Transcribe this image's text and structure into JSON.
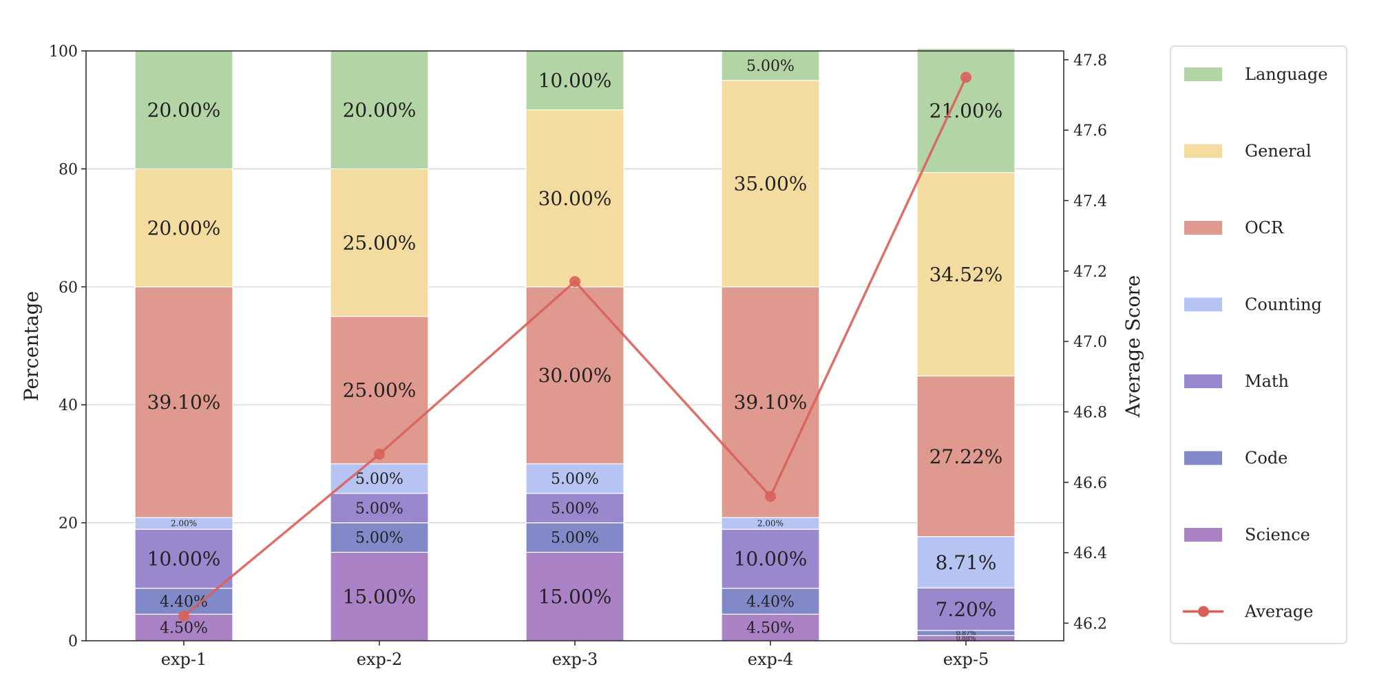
{
  "chart_data": {
    "type": "bar",
    "stacked": true,
    "categories": [
      "exp-1",
      "exp-2",
      "exp-3",
      "exp-4",
      "exp-5"
    ],
    "ylabel": "Percentage",
    "ylabel_right": "Average Score",
    "ylim": [
      0,
      100
    ],
    "ylim_right": [
      46.15,
      47.825
    ],
    "yticks": [
      0,
      20,
      40,
      60,
      80,
      100
    ],
    "yticks_right": [
      "46.2",
      "46.4",
      "46.6",
      "46.8",
      "47.0",
      "47.2",
      "47.4",
      "47.6",
      "47.8"
    ],
    "grid": "horizontal",
    "legend_placement": "outside-right",
    "series": [
      {
        "name": "Science",
        "color": "#ab82c5",
        "values": [
          4.5,
          15.0,
          15.0,
          4.5,
          0.88
        ]
      },
      {
        "name": "Code",
        "color": "#8189c9",
        "values": [
          4.4,
          5.0,
          5.0,
          4.4,
          0.87
        ]
      },
      {
        "name": "Math",
        "color": "#9a88cf",
        "values": [
          10.0,
          5.0,
          5.0,
          10.0,
          7.2
        ]
      },
      {
        "name": "Counting",
        "color": "#b6c4f3",
        "values": [
          2.0,
          5.0,
          5.0,
          2.0,
          8.71
        ]
      },
      {
        "name": "OCR",
        "color": "#df998e",
        "values": [
          39.1,
          25.0,
          30.0,
          39.1,
          27.22
        ]
      },
      {
        "name": "General",
        "color": "#f4dca0",
        "values": [
          20.0,
          25.0,
          30.0,
          35.0,
          34.52
        ]
      },
      {
        "name": "Language",
        "color": "#b3d5a6",
        "values": [
          20.0,
          20.0,
          10.0,
          5.0,
          21.0
        ]
      }
    ],
    "line": {
      "name": "Average",
      "color": "#d9605a",
      "values": [
        46.22,
        46.68,
        47.17,
        46.56,
        47.75
      ]
    },
    "legend_order": [
      "Language",
      "General",
      "OCR",
      "Counting",
      "Math",
      "Code",
      "Science",
      "Average"
    ]
  }
}
